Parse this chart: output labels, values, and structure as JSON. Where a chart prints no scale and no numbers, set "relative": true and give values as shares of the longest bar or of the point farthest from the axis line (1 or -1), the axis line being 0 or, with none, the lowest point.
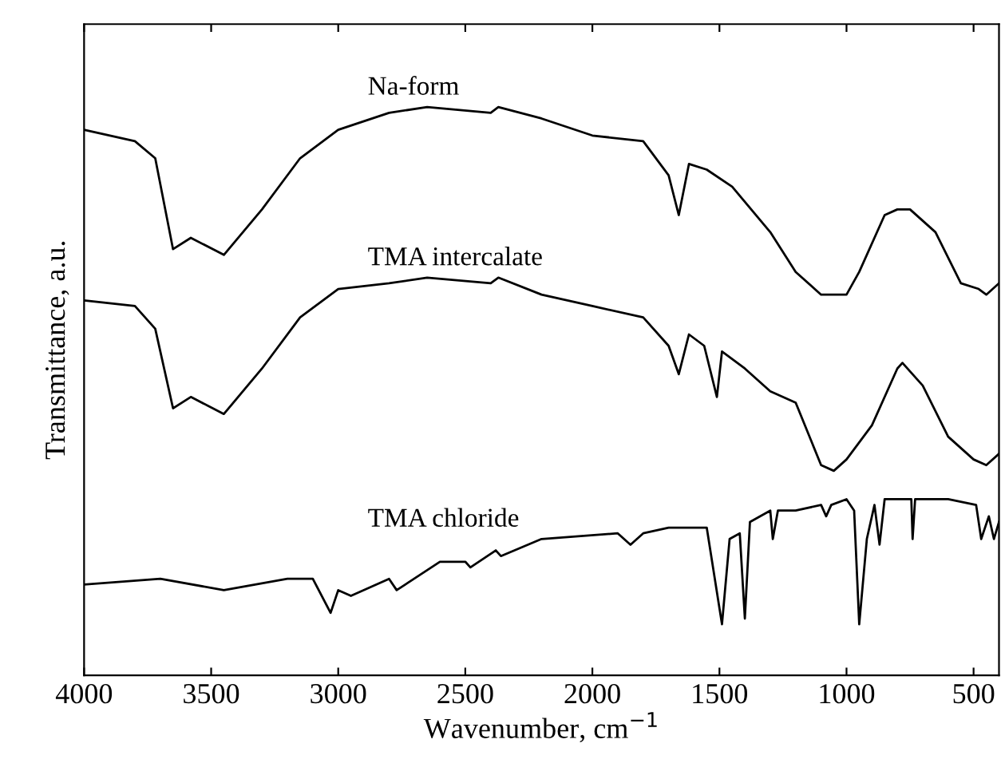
{
  "chart_data": {
    "type": "line",
    "relative": true,
    "xlabel": "Wavenumber, cm$^{−1}$",
    "ylabel": "Transmittance, a.u.",
    "xlim": [
      4000,
      400
    ],
    "xticks": [
      4000,
      3500,
      3000,
      2500,
      2000,
      1500,
      1000,
      500
    ],
    "grid": false,
    "legend": false,
    "marker": "none",
    "line_style": "solid",
    "series": [
      {
        "name": "Na-form",
        "color": "#000000",
        "x": [
          4000,
          3800,
          3720,
          3650,
          3580,
          3450,
          3300,
          3150,
          3000,
          2800,
          2650,
          2400,
          2370,
          2200,
          2000,
          1800,
          1700,
          1660,
          1620,
          1550,
          1450,
          1300,
          1200,
          1100,
          1000,
          950,
          850,
          800,
          750,
          650,
          550,
          480,
          450,
          400
        ],
        "values": [
          0.96,
          0.94,
          0.91,
          0.75,
          0.77,
          0.74,
          0.82,
          0.91,
          0.96,
          0.99,
          1.0,
          0.99,
          1.0,
          0.98,
          0.95,
          0.94,
          0.88,
          0.81,
          0.9,
          0.89,
          0.86,
          0.78,
          0.71,
          0.67,
          0.67,
          0.71,
          0.81,
          0.82,
          0.82,
          0.78,
          0.69,
          0.68,
          0.67,
          0.69
        ]
      },
      {
        "name": "TMA intercalate",
        "color": "#000000",
        "x": [
          4000,
          3800,
          3720,
          3650,
          3580,
          3450,
          3300,
          3150,
          3000,
          2800,
          2650,
          2400,
          2370,
          2200,
          2000,
          1800,
          1700,
          1660,
          1620,
          1560,
          1510,
          1490,
          1400,
          1300,
          1200,
          1100,
          1050,
          1000,
          900,
          800,
          780,
          700,
          600,
          500,
          450,
          400
        ],
        "values": [
          0.66,
          0.65,
          0.61,
          0.47,
          0.49,
          0.46,
          0.54,
          0.63,
          0.68,
          0.69,
          0.7,
          0.69,
          0.7,
          0.67,
          0.65,
          0.63,
          0.58,
          0.53,
          0.6,
          0.58,
          0.49,
          0.57,
          0.54,
          0.5,
          0.48,
          0.37,
          0.36,
          0.38,
          0.44,
          0.54,
          0.55,
          0.51,
          0.42,
          0.38,
          0.37,
          0.39
        ]
      },
      {
        "name": "TMA chloride",
        "color": "#000000",
        "x": [
          4000,
          3700,
          3450,
          3200,
          3100,
          3030,
          3000,
          2950,
          2800,
          2770,
          2600,
          2500,
          2480,
          2380,
          2360,
          2200,
          1900,
          1850,
          1800,
          1700,
          1550,
          1490,
          1460,
          1420,
          1400,
          1380,
          1300,
          1290,
          1270,
          1200,
          1100,
          1080,
          1060,
          1000,
          970,
          950,
          920,
          890,
          870,
          850,
          800,
          745,
          740,
          730,
          600,
          490,
          470,
          440,
          420,
          400
        ],
        "values": [
          0.16,
          0.17,
          0.15,
          0.17,
          0.17,
          0.11,
          0.15,
          0.14,
          0.17,
          0.15,
          0.2,
          0.2,
          0.19,
          0.22,
          0.21,
          0.24,
          0.25,
          0.23,
          0.25,
          0.26,
          0.26,
          0.09,
          0.24,
          0.25,
          0.1,
          0.27,
          0.29,
          0.24,
          0.29,
          0.29,
          0.3,
          0.28,
          0.3,
          0.31,
          0.29,
          0.09,
          0.24,
          0.3,
          0.23,
          0.31,
          0.31,
          0.31,
          0.24,
          0.31,
          0.31,
          0.3,
          0.24,
          0.28,
          0.24,
          0.27
        ]
      }
    ]
  }
}
